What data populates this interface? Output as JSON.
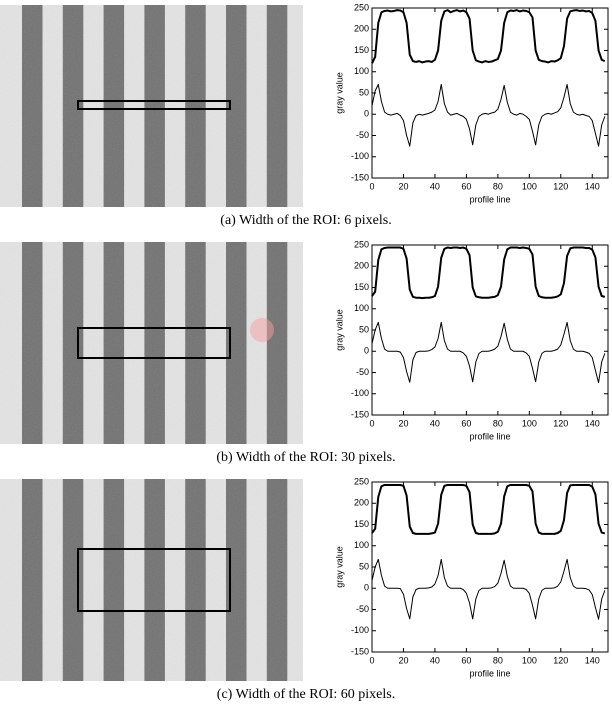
{
  "chart_data": [
    {
      "type": "line",
      "caption": "(a) Width of the ROI: 6 pixels.",
      "xlabel": "profile line",
      "ylabel": "gray value",
      "x": [
        0,
        2,
        4,
        6,
        8,
        10,
        12,
        14,
        16,
        18,
        20,
        22,
        24,
        26,
        28,
        30,
        32,
        34,
        36,
        38,
        40,
        42,
        44,
        46,
        48,
        50,
        52,
        54,
        56,
        58,
        60,
        62,
        64,
        66,
        68,
        70,
        72,
        74,
        76,
        78,
        80,
        82,
        84,
        86,
        88,
        90,
        92,
        94,
        96,
        98,
        100,
        102,
        104,
        106,
        108,
        110,
        112,
        114,
        116,
        118,
        120,
        122,
        124,
        126,
        128,
        130,
        132,
        134,
        136,
        138,
        140,
        142,
        144,
        146,
        148
      ],
      "series": [
        {
          "color": "#000000",
          "values": [
            120,
            135,
            215,
            240,
            243,
            244,
            242,
            243,
            245,
            244,
            240,
            215,
            140,
            125,
            123,
            125,
            122,
            124,
            125,
            123,
            128,
            150,
            220,
            242,
            245,
            240,
            243,
            245,
            242,
            244,
            240,
            225,
            150,
            127,
            124,
            122,
            125,
            123,
            124,
            127,
            130,
            150,
            215,
            240,
            244,
            243,
            245,
            242,
            244,
            243,
            240,
            228,
            150,
            128,
            125,
            124,
            122,
            125,
            124,
            127,
            132,
            160,
            225,
            242,
            244,
            245,
            243,
            244,
            242,
            243,
            238,
            220,
            150,
            128,
            125
          ]
        },
        {
          "color": "#000000",
          "values": [
            20,
            55,
            70,
            30,
            5,
            0,
            -2,
            0,
            2,
            -3,
            -15,
            -50,
            -75,
            -20,
            -3,
            0,
            -2,
            0,
            2,
            5,
            10,
            30,
            70,
            25,
            5,
            -2,
            0,
            2,
            -2,
            -5,
            -12,
            -35,
            -72,
            -25,
            -5,
            0,
            2,
            0,
            3,
            5,
            12,
            35,
            68,
            28,
            5,
            0,
            -2,
            2,
            0,
            -5,
            -12,
            -40,
            -72,
            -25,
            -5,
            0,
            2,
            0,
            3,
            6,
            15,
            40,
            70,
            25,
            5,
            0,
            -2,
            0,
            -3,
            -5,
            -15,
            -45,
            -75,
            -25,
            -5
          ]
        }
      ],
      "xlim": [
        0,
        150
      ],
      "xticks": [
        0,
        20,
        40,
        60,
        80,
        100,
        120,
        140
      ],
      "ylim": [
        -150,
        250
      ],
      "yticks": [
        -150,
        -100,
        -50,
        0,
        50,
        100,
        150,
        200,
        250
      ]
    },
    {
      "type": "line",
      "caption": "(b) Width of the ROI: 30 pixels.",
      "xlabel": "profile line",
      "ylabel": "gray value",
      "x": [
        0,
        2,
        4,
        6,
        8,
        10,
        12,
        14,
        16,
        18,
        20,
        22,
        24,
        26,
        28,
        30,
        32,
        34,
        36,
        38,
        40,
        42,
        44,
        46,
        48,
        50,
        52,
        54,
        56,
        58,
        60,
        62,
        64,
        66,
        68,
        70,
        72,
        74,
        76,
        78,
        80,
        82,
        84,
        86,
        88,
        90,
        92,
        94,
        96,
        98,
        100,
        102,
        104,
        106,
        108,
        110,
        112,
        114,
        116,
        118,
        120,
        122,
        124,
        126,
        128,
        130,
        132,
        134,
        136,
        138,
        140,
        142,
        144,
        146,
        148
      ],
      "series": [
        {
          "color": "#000000",
          "values": [
            130,
            140,
            215,
            240,
            243,
            244,
            244,
            244,
            244,
            244,
            241,
            218,
            145,
            128,
            126,
            126,
            125,
            126,
            126,
            127,
            130,
            152,
            220,
            241,
            244,
            243,
            244,
            244,
            243,
            244,
            241,
            226,
            150,
            129,
            127,
            126,
            126,
            126,
            127,
            128,
            132,
            152,
            216,
            240,
            244,
            244,
            244,
            243,
            244,
            243,
            241,
            228,
            152,
            130,
            127,
            126,
            126,
            126,
            127,
            129,
            134,
            160,
            224,
            242,
            244,
            244,
            244,
            244,
            243,
            243,
            239,
            221,
            152,
            130,
            128
          ]
        },
        {
          "color": "#000000",
          "values": [
            18,
            50,
            68,
            30,
            5,
            0,
            0,
            0,
            0,
            -2,
            -15,
            -48,
            -73,
            -20,
            -3,
            0,
            0,
            0,
            1,
            4,
            10,
            30,
            68,
            25,
            5,
            0,
            0,
            0,
            0,
            -4,
            -12,
            -35,
            -72,
            -25,
            -5,
            0,
            0,
            0,
            2,
            5,
            12,
            35,
            66,
            28,
            5,
            0,
            0,
            0,
            0,
            -4,
            -12,
            -40,
            -72,
            -25,
            -5,
            0,
            0,
            0,
            2,
            5,
            15,
            40,
            68,
            25,
            5,
            0,
            0,
            0,
            -2,
            -5,
            -15,
            -45,
            -74,
            -25,
            -5
          ]
        }
      ],
      "xlim": [
        0,
        150
      ],
      "xticks": [
        0,
        20,
        40,
        60,
        80,
        100,
        120,
        140
      ],
      "ylim": [
        -150,
        250
      ],
      "yticks": [
        -150,
        -100,
        -50,
        0,
        50,
        100,
        150,
        200,
        250
      ]
    },
    {
      "type": "line",
      "caption": "(c) Width of the ROI: 60 pixels.",
      "xlabel": "profile line",
      "ylabel": "gray value",
      "x": [
        0,
        2,
        4,
        6,
        8,
        10,
        12,
        14,
        16,
        18,
        20,
        22,
        24,
        26,
        28,
        30,
        32,
        34,
        36,
        38,
        40,
        42,
        44,
        46,
        48,
        50,
        52,
        54,
        56,
        58,
        60,
        62,
        64,
        66,
        68,
        70,
        72,
        74,
        76,
        78,
        80,
        82,
        84,
        86,
        88,
        90,
        92,
        94,
        96,
        98,
        100,
        102,
        104,
        106,
        108,
        110,
        112,
        114,
        116,
        118,
        120,
        122,
        124,
        126,
        128,
        130,
        132,
        134,
        136,
        138,
        140,
        142,
        144,
        146,
        148
      ],
      "series": [
        {
          "color": "#000000",
          "values": [
            130,
            140,
            215,
            240,
            243,
            243,
            243,
            243,
            243,
            243,
            241,
            218,
            145,
            130,
            128,
            128,
            128,
            128,
            128,
            129,
            131,
            152,
            220,
            241,
            243,
            243,
            243,
            243,
            243,
            243,
            241,
            226,
            150,
            130,
            128,
            128,
            128,
            128,
            128,
            129,
            133,
            152,
            216,
            240,
            243,
            243,
            243,
            243,
            243,
            243,
            241,
            228,
            152,
            131,
            128,
            128,
            128,
            128,
            128,
            130,
            135,
            160,
            224,
            242,
            243,
            243,
            243,
            243,
            243,
            243,
            239,
            221,
            152,
            131,
            129
          ]
        },
        {
          "color": "#000000",
          "values": [
            18,
            50,
            68,
            30,
            5,
            0,
            0,
            0,
            0,
            -1,
            -14,
            -48,
            -72,
            -20,
            -3,
            0,
            0,
            0,
            1,
            3,
            10,
            30,
            68,
            25,
            5,
            0,
            0,
            0,
            0,
            -3,
            -12,
            -35,
            -72,
            -25,
            -5,
            0,
            0,
            0,
            1,
            4,
            12,
            35,
            66,
            28,
            5,
            0,
            0,
            0,
            0,
            -3,
            -12,
            -40,
            -72,
            -25,
            -5,
            0,
            0,
            0,
            1,
            5,
            15,
            40,
            68,
            25,
            5,
            0,
            0,
            0,
            -1,
            -4,
            -15,
            -45,
            -73,
            -25,
            -5
          ]
        }
      ],
      "xlim": [
        0,
        150
      ],
      "xticks": [
        0,
        20,
        40,
        60,
        80,
        100,
        120,
        140
      ],
      "ylim": [
        -150,
        250
      ],
      "yticks": [
        -150,
        -100,
        -50,
        0,
        50,
        100,
        150,
        200,
        250
      ]
    }
  ]
}
